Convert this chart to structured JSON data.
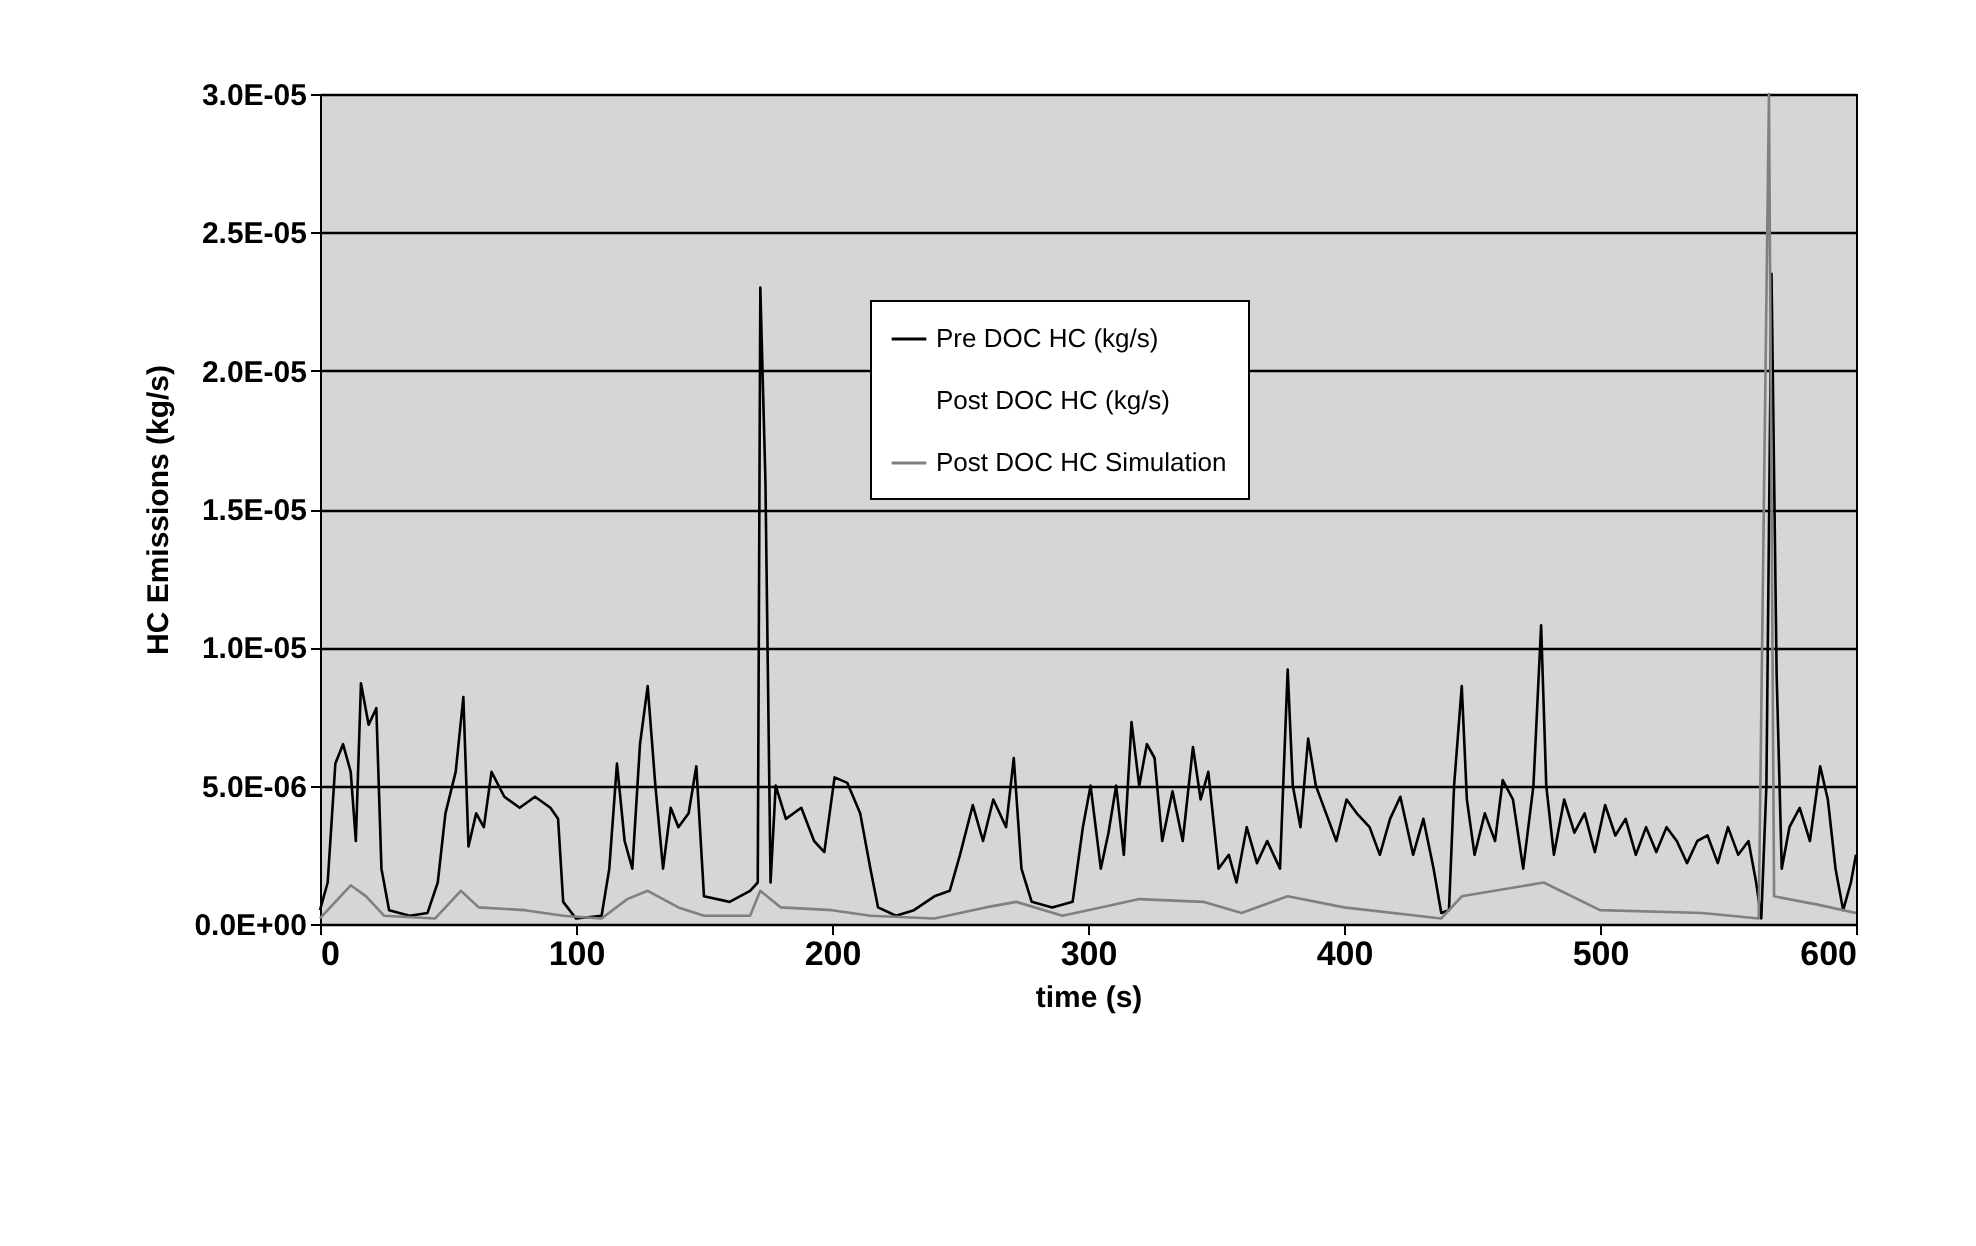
{
  "chart_data": {
    "type": "line",
    "xlabel": "time (s)",
    "ylabel": "HC Emissions (kg/s)",
    "xlim": [
      0,
      600
    ],
    "xticks": [
      0,
      100,
      200,
      300,
      400,
      500,
      600
    ],
    "ylim": [
      0,
      3e-05
    ],
    "yticks": [
      {
        "value": 0,
        "label": "0.0E+00"
      },
      {
        "value": 5e-06,
        "label": "5.0E-06"
      },
      {
        "value": 1e-05,
        "label": "1.0E-05"
      },
      {
        "value": 1.5e-05,
        "label": "1.5E-05"
      },
      {
        "value": 2e-05,
        "label": "2.0E-05"
      },
      {
        "value": 2.5e-05,
        "label": "2.5E-05"
      },
      {
        "value": 3e-05,
        "label": "3.0E-05"
      }
    ],
    "grid": "y",
    "legend": "top",
    "series": [
      {
        "name": "Pre DOC  HC (kg/s)",
        "color": "#000000",
        "x": [
          0,
          3,
          6,
          9,
          12,
          14,
          16,
          19,
          22,
          24,
          27,
          35,
          42,
          46,
          49,
          53,
          56,
          58,
          61,
          64,
          67,
          72,
          78,
          84,
          90,
          93,
          95,
          100,
          110,
          113,
          116,
          119,
          122,
          125,
          128,
          131,
          134,
          137,
          140,
          144,
          147,
          150,
          160,
          168,
          171,
          172,
          174,
          176,
          178,
          182,
          188,
          193,
          197,
          201,
          206,
          211,
          215,
          218,
          225,
          232,
          240,
          246,
          250,
          255,
          259,
          263,
          268,
          271,
          274,
          278,
          286,
          294,
          298,
          301,
          305,
          308,
          311,
          314,
          317,
          320,
          323,
          326,
          329,
          333,
          337,
          341,
          344,
          347,
          351,
          355,
          358,
          362,
          366,
          370,
          375,
          378,
          380,
          383,
          386,
          389,
          393,
          397,
          401,
          405,
          410,
          414,
          418,
          422,
          427,
          431,
          435,
          438,
          441,
          443,
          446,
          448,
          451,
          455,
          459,
          462,
          466,
          470,
          474,
          477,
          479,
          482,
          486,
          490,
          494,
          498,
          502,
          506,
          510,
          514,
          518,
          522,
          526,
          530,
          534,
          538,
          542,
          546,
          550,
          554,
          558,
          561,
          563,
          565,
          567,
          569,
          571,
          574,
          578,
          582,
          586,
          589,
          592,
          595,
          598,
          600
        ],
        "values": [
          5e-07,
          1.5e-06,
          5.8e-06,
          6.5e-06,
          5.5e-06,
          3e-06,
          8.7e-06,
          7.2e-06,
          7.8e-06,
          2e-06,
          5e-07,
          3e-07,
          4e-07,
          1.5e-06,
          4e-06,
          5.5e-06,
          8.2e-06,
          2.8e-06,
          4e-06,
          3.5e-06,
          5.5e-06,
          4.6e-06,
          4.2e-06,
          4.6e-06,
          4.2e-06,
          3.8e-06,
          8e-07,
          2e-07,
          3e-07,
          2e-06,
          5.8e-06,
          3e-06,
          2e-06,
          6.5e-06,
          8.6e-06,
          5e-06,
          2e-06,
          4.2e-06,
          3.5e-06,
          4e-06,
          5.7e-06,
          1e-06,
          8e-07,
          1.2e-06,
          1.5e-06,
          2.3e-05,
          1.6e-05,
          1.5e-06,
          5e-06,
          3.8e-06,
          4.2e-06,
          3e-06,
          2.6e-06,
          5.3e-06,
          5.1e-06,
          4e-06,
          2e-06,
          6e-07,
          3e-07,
          5e-07,
          1e-06,
          1.2e-06,
          2.5e-06,
          4.3e-06,
          3e-06,
          4.5e-06,
          3.5e-06,
          6e-06,
          2e-06,
          8e-07,
          6e-07,
          8e-07,
          3.5e-06,
          5e-06,
          2e-06,
          3.3e-06,
          5e-06,
          2.5e-06,
          7.3e-06,
          5e-06,
          6.5e-06,
          6e-06,
          3e-06,
          4.8e-06,
          3e-06,
          6.4e-06,
          4.5e-06,
          5.5e-06,
          2e-06,
          2.5e-06,
          1.5e-06,
          3.5e-06,
          2.2e-06,
          3e-06,
          2e-06,
          9.2e-06,
          5e-06,
          3.5e-06,
          6.7e-06,
          5e-06,
          4e-06,
          3e-06,
          4.5e-06,
          4e-06,
          3.5e-06,
          2.5e-06,
          3.8e-06,
          4.6e-06,
          2.5e-06,
          3.8e-06,
          2e-06,
          4e-07,
          5e-07,
          5e-06,
          8.6e-06,
          4.5e-06,
          2.5e-06,
          4e-06,
          3e-06,
          5.2e-06,
          4.5e-06,
          2e-06,
          5e-06,
          1.08e-05,
          5e-06,
          2.5e-06,
          4.5e-06,
          3.3e-06,
          4e-06,
          2.6e-06,
          4.3e-06,
          3.2e-06,
          3.8e-06,
          2.5e-06,
          3.5e-06,
          2.6e-06,
          3.5e-06,
          3e-06,
          2.2e-06,
          3e-06,
          3.2e-06,
          2.2e-06,
          3.5e-06,
          2.5e-06,
          3e-06,
          1.5e-06,
          2e-07,
          5e-06,
          2.35e-05,
          9e-06,
          2e-06,
          3.5e-06,
          4.2e-06,
          3e-06,
          5.7e-06,
          4.5e-06,
          2e-06,
          5e-07,
          1.5e-06,
          2.5e-06
        ]
      },
      {
        "name": "Post DOC  HC (kg/s)"
      },
      {
        "name": "Post DOC HC Simulation",
        "color": "#808080",
        "x": [
          0,
          6,
          12,
          18,
          25,
          45,
          55,
          62,
          80,
          95,
          110,
          120,
          128,
          140,
          150,
          168,
          172,
          180,
          200,
          215,
          240,
          260,
          272,
          290,
          305,
          320,
          345,
          360,
          378,
          400,
          438,
          446,
          478,
          500,
          540,
          562,
          566,
          568,
          585,
          600
        ],
        "values": [
          2e-07,
          8e-07,
          1.4e-06,
          1e-06,
          3e-07,
          2e-07,
          1.2e-06,
          6e-07,
          5e-07,
          3e-07,
          2e-07,
          9e-07,
          1.2e-06,
          6e-07,
          3e-07,
          3e-07,
          1.2e-06,
          6e-07,
          5e-07,
          3e-07,
          2e-07,
          6e-07,
          8e-07,
          3e-07,
          6e-07,
          9e-07,
          8e-07,
          4e-07,
          1e-06,
          6e-07,
          2e-07,
          1e-06,
          1.5e-06,
          5e-07,
          4e-07,
          2e-07,
          3e-05,
          1e-06,
          7e-07,
          4e-07
        ]
      }
    ]
  }
}
